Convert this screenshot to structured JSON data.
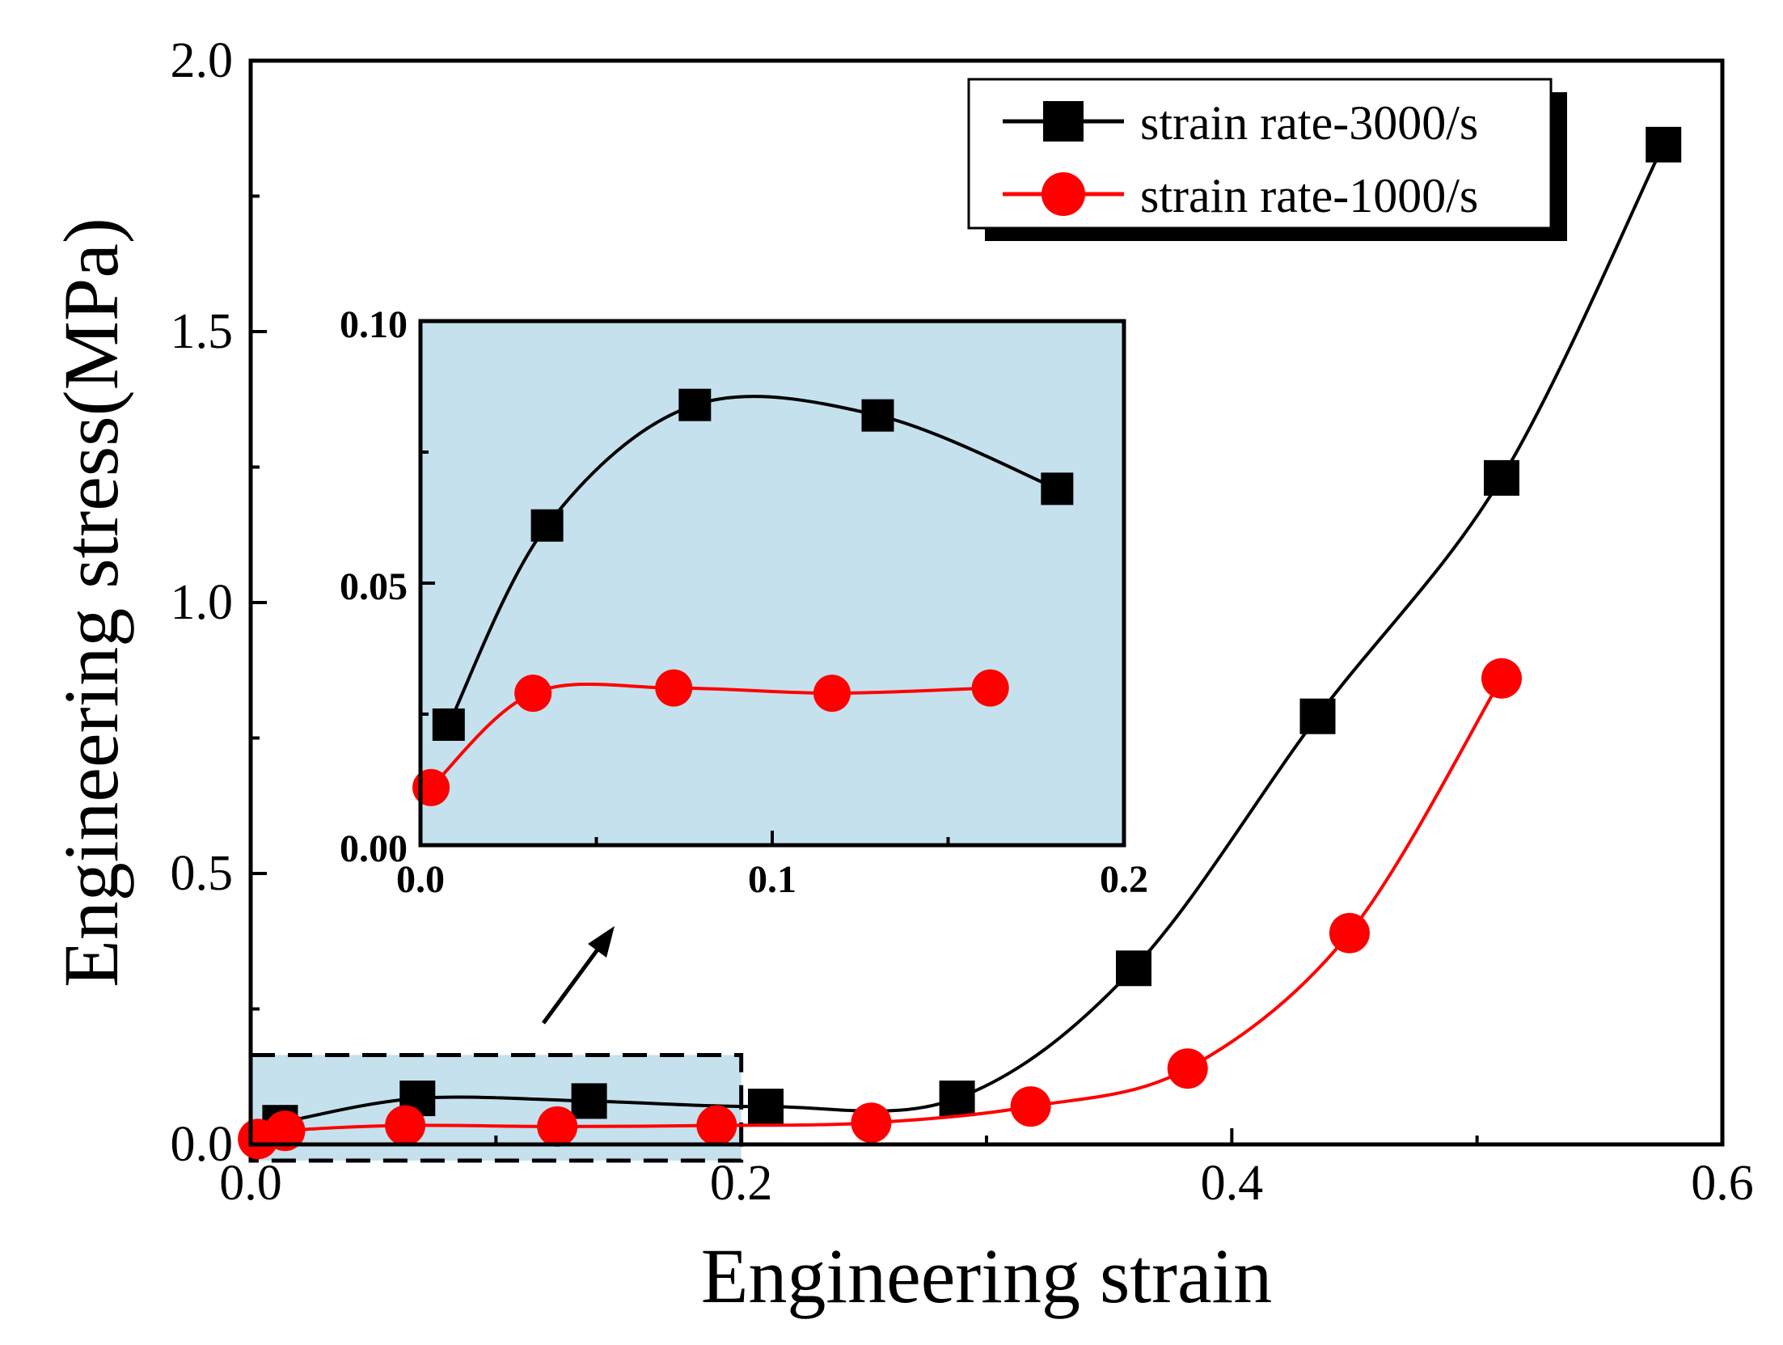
{
  "chart_data": [
    {
      "type": "line",
      "xlabel": "Engineering strain",
      "ylabel": "Engineering stress(MPa)",
      "xlim": [
        0.0,
        0.6
      ],
      "ylim": [
        0.0,
        2.0
      ],
      "x_ticks": [
        "0.0",
        "0.2",
        "0.4",
        "0.6"
      ],
      "y_ticks": [
        "0.0",
        "0.5",
        "1.0",
        "1.5",
        "2.0"
      ],
      "x_tick_values": [
        0.0,
        0.2,
        0.4,
        0.6
      ],
      "y_tick_values": [
        0.0,
        0.5,
        1.0,
        1.5,
        2.0
      ],
      "grid": false,
      "legend_position": "top-right",
      "series": [
        {
          "name": "strain rate-3000/s",
          "color": "#000000",
          "marker": "square",
          "x": [
            0.012,
            0.068,
            0.138,
            0.21,
            0.288,
            0.36,
            0.435,
            0.51,
            0.576
          ],
          "y": [
            0.04,
            0.085,
            0.08,
            0.07,
            0.085,
            0.325,
            0.79,
            1.23,
            1.845
          ]
        },
        {
          "name": "strain rate-1000/s",
          "color": "#ff0000",
          "marker": "circle",
          "x": [
            0.003,
            0.014,
            0.063,
            0.125,
            0.19,
            0.253,
            0.318,
            0.382,
            0.448,
            0.51
          ],
          "y": [
            0.01,
            0.025,
            0.035,
            0.033,
            0.035,
            0.04,
            0.07,
            0.14,
            0.39,
            0.86
          ]
        }
      ]
    },
    {
      "type": "line",
      "role": "inset-zoom",
      "xlim": [
        0.0,
        0.2
      ],
      "ylim": [
        0.0,
        0.1
      ],
      "x_ticks": [
        "0.0",
        "0.1",
        "0.2"
      ],
      "y_ticks": [
        "0.00",
        "0.05",
        "0.10"
      ],
      "x_tick_values": [
        0.0,
        0.1,
        0.2
      ],
      "y_tick_values": [
        0.0,
        0.05,
        0.1
      ],
      "background_color": "#c5e1ee",
      "series": [
        {
          "name": "strain rate-3000/s",
          "color": "#000000",
          "marker": "square",
          "x": [
            0.008,
            0.036,
            0.078,
            0.13,
            0.181
          ],
          "y": [
            0.023,
            0.061,
            0.084,
            0.082,
            0.068
          ]
        },
        {
          "name": "strain rate-1000/s",
          "color": "#ff0000",
          "marker": "circle",
          "x": [
            0.003,
            0.032,
            0.072,
            0.117,
            0.162
          ],
          "y": [
            0.011,
            0.029,
            0.03,
            0.029,
            0.03
          ]
        }
      ]
    }
  ]
}
